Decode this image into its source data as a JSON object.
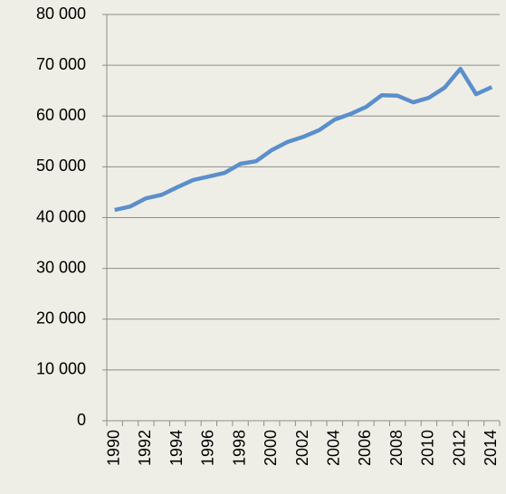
{
  "chart_data": {
    "type": "line",
    "categories": [
      "1990",
      null,
      "1992",
      null,
      "1994",
      null,
      "1996",
      null,
      "1998",
      null,
      "2000",
      null,
      "2002",
      null,
      "2004",
      null,
      "2006",
      null,
      "2008",
      null,
      "2010",
      null,
      "2012",
      null,
      "2014"
    ],
    "values": [
      41500,
      42200,
      43800,
      44500,
      46000,
      47400,
      48100,
      48800,
      50600,
      51100,
      53300,
      54900,
      55900,
      57200,
      59300,
      60400,
      61800,
      64100,
      64000,
      62700,
      63600,
      65600,
      69300,
      64300,
      65700
    ],
    "color": "#5b8fcb",
    "ylim": [
      0,
      80000
    ],
    "yticks": [
      0,
      {
        "value": 10000,
        "label": "10 000"
      },
      {
        "value": 20000,
        "label": "20 000"
      },
      {
        "value": 30000,
        "label": "30 000"
      },
      {
        "value": 40000,
        "label": "40 000"
      },
      {
        "value": 50000,
        "label": "50 000"
      },
      {
        "value": 60000,
        "label": "60 000"
      },
      {
        "value": 70000,
        "label": "70 000"
      },
      {
        "value": 80000,
        "label": "80 000"
      }
    ],
    "grid": true
  }
}
